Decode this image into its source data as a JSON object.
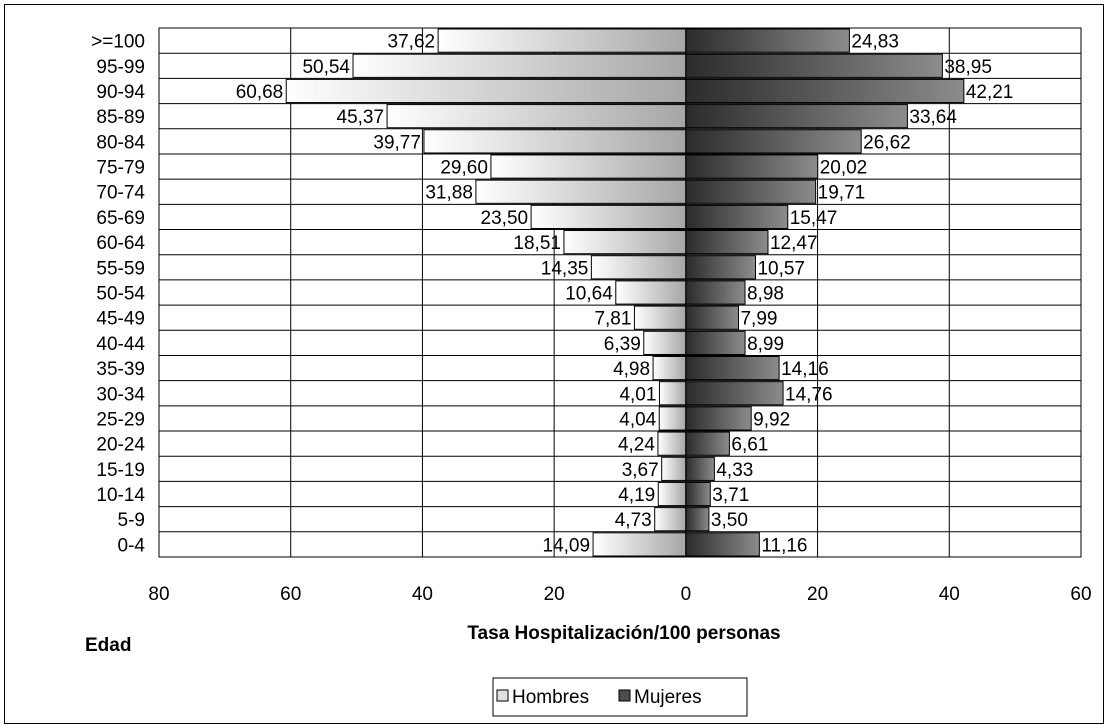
{
  "chart_data": {
    "type": "bar",
    "orientation": "horizontal-population-pyramid",
    "categories": [
      ">=100",
      "95-99",
      "90-94",
      "85-89",
      "80-84",
      "75-79",
      "70-74",
      "65-69",
      "60-64",
      "55-59",
      "50-54",
      "45-49",
      "40-44",
      "35-39",
      "30-34",
      "25-29",
      "20-24",
      "15-19",
      "10-14",
      "5-9",
      "0-4"
    ],
    "series": [
      {
        "name": "Hombres",
        "values": [
          37.62,
          50.54,
          60.68,
          45.37,
          39.77,
          29.6,
          31.88,
          23.5,
          18.51,
          14.35,
          10.64,
          7.81,
          6.39,
          4.98,
          4.01,
          4.04,
          4.24,
          3.67,
          4.19,
          4.73,
          14.09
        ]
      },
      {
        "name": "Mujeres",
        "values": [
          24.83,
          38.95,
          42.21,
          33.64,
          26.62,
          20.02,
          19.71,
          15.47,
          12.47,
          10.57,
          8.98,
          7.99,
          8.99,
          14.16,
          14.76,
          9.92,
          6.61,
          4.33,
          3.71,
          3.5,
          11.16
        ]
      }
    ],
    "value_labels": {
      "Hombres": [
        "37,62",
        "50,54",
        "60,68",
        "45,37",
        "39,77",
        "29,60",
        "31,88",
        "23,50",
        "18,51",
        "14,35",
        "10,64",
        "7,81",
        "6,39",
        "4,98",
        "4,01",
        "4,04",
        "4,24",
        "3,67",
        "4,19",
        "4,73",
        "14,09"
      ],
      "Mujeres": [
        "24,83",
        "38,95",
        "42,21",
        "33,64",
        "26,62",
        "20,02",
        "19,71",
        "15,47",
        "12,47",
        "10,57",
        "8,98",
        "7,99",
        "8,99",
        "14,16",
        "14,76",
        "9,92",
        "6,61",
        "4,33",
        "3,71",
        "3,50",
        "11,16"
      ]
    },
    "x_ticks": [
      "80",
      "60",
      "40",
      "20",
      "0",
      "20",
      "40",
      "60"
    ],
    "xlim": [
      -80,
      60
    ],
    "xlabel": "Tasa Hospitalización/100 personas",
    "ylabel": "Edad",
    "grid": true,
    "legend": "bottom-center",
    "colors": {
      "Hombres": "#d9d9d9",
      "Mujeres": "#595959"
    }
  }
}
